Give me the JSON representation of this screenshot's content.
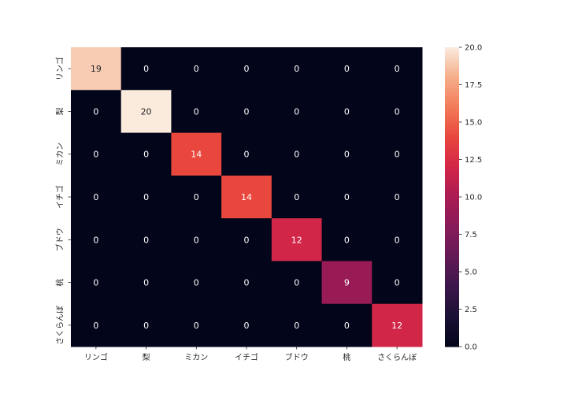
{
  "chart_data": {
    "type": "heatmap",
    "title": "",
    "xlabel": "",
    "ylabel": "",
    "x_labels": [
      "リンゴ",
      "梨",
      "ミカン",
      "イチゴ",
      "ブドウ",
      "桃",
      "さくらんぼ"
    ],
    "y_labels": [
      "リンゴ",
      "梨",
      "ミカン",
      "イチゴ",
      "ブドウ",
      "桃",
      "さくらんぼ"
    ],
    "values": [
      [
        19,
        0,
        0,
        0,
        0,
        0,
        0
      ],
      [
        0,
        20,
        0,
        0,
        0,
        0,
        0
      ],
      [
        0,
        0,
        14,
        0,
        0,
        0,
        0
      ],
      [
        0,
        0,
        0,
        14,
        0,
        0,
        0
      ],
      [
        0,
        0,
        0,
        0,
        12,
        0,
        0
      ],
      [
        0,
        0,
        0,
        0,
        0,
        9,
        0
      ],
      [
        0,
        0,
        0,
        0,
        0,
        0,
        12
      ]
    ],
    "colorbar": {
      "range": [
        0,
        20
      ],
      "ticks": [
        0,
        2.5,
        5,
        7.5,
        10,
        12.5,
        15,
        17.5,
        20
      ],
      "tick_labels": [
        "0.0",
        "2.5",
        "5.0",
        "7.5",
        "10.0",
        "12.5",
        "15.0",
        "17.5",
        "20.0"
      ],
      "colormap": "rocket"
    }
  }
}
